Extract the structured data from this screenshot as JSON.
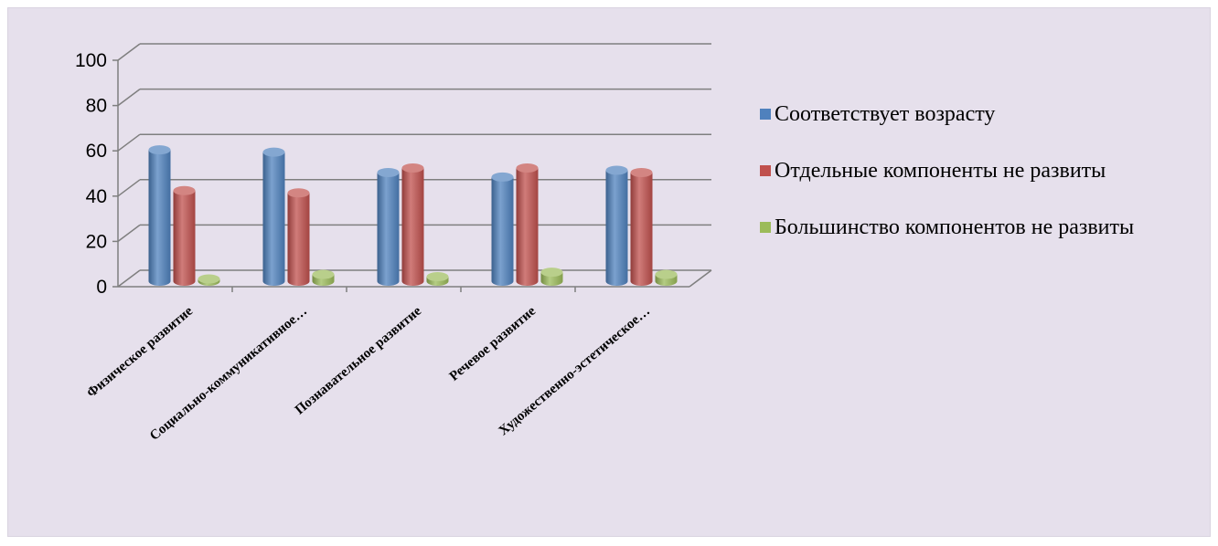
{
  "chart_data": {
    "type": "bar",
    "three_d": true,
    "categories": [
      "Физическое развитие",
      "Социально-коммуникативное…",
      "Познавательное развитие",
      "Речевое развитие",
      "Художественно-эстетическое…"
    ],
    "series": [
      {
        "name": "Соответствует возрасту",
        "color": "#4f81bd",
        "values": [
          58,
          57,
          48,
          46,
          49
        ]
      },
      {
        "name": "Отдельные компоненты не развиты",
        "color": "#c0504d",
        "values": [
          40,
          39,
          50,
          50,
          48
        ]
      },
      {
        "name": "Большинство компонентов не развиты",
        "color": "#9bbb59",
        "values": [
          1,
          3,
          2,
          4,
          3
        ]
      }
    ],
    "ylim": [
      0,
      100
    ],
    "yticks": [
      0,
      20,
      40,
      60,
      80,
      100
    ],
    "grid": true,
    "legend_position": "right",
    "title": "",
    "xlabel": "",
    "ylabel": ""
  }
}
